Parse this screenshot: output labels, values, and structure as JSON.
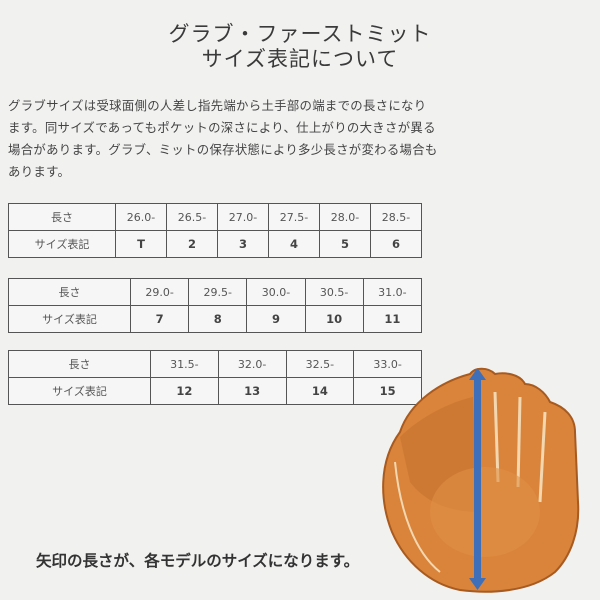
{
  "title": {
    "line1": "グラブ・ファーストミット",
    "line2": "サイズ表記について"
  },
  "description": "グラブサイズは受球面側の人差し指先端から土手部の端までの長さになります。同サイズであってもポケットの深さにより、仕上がりの大きさが異る場合があります。グラブ、ミットの保存状態により多少長さが変わる場合もあります。",
  "tables": [
    {
      "length_label": "長さ",
      "size_label": "サイズ表記",
      "lengths": [
        "26.0-",
        "26.5-",
        "27.0-",
        "27.5-",
        "28.0-",
        "28.5-"
      ],
      "sizes": [
        "T",
        "2",
        "3",
        "4",
        "5",
        "6"
      ]
    },
    {
      "length_label": "長さ",
      "size_label": "サイズ表記",
      "lengths": [
        "29.0-",
        "29.5-",
        "30.0-",
        "30.5-",
        "31.0-"
      ],
      "sizes": [
        "7",
        "8",
        "9",
        "10",
        "11"
      ]
    },
    {
      "length_label": "長さ",
      "size_label": "サイズ表記",
      "lengths": [
        "31.5-",
        "32.0-",
        "32.5-",
        "33.0-"
      ],
      "sizes": [
        "12",
        "13",
        "14",
        "15"
      ]
    }
  ],
  "caption": "矢印の長さが、各モデルのサイズになります。",
  "colors": {
    "glove": "#d9843a",
    "arrow": "#3f6fb8"
  }
}
